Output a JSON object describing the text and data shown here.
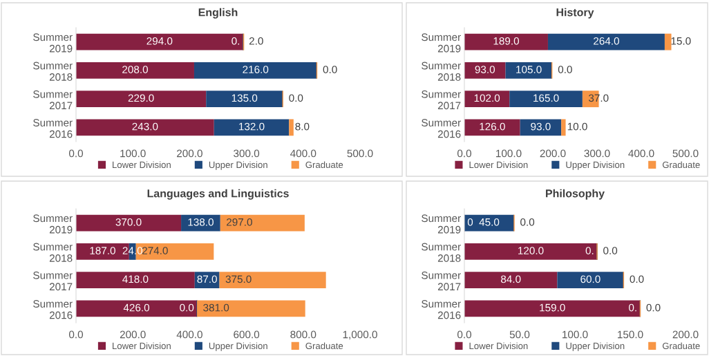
{
  "chart_data": [
    {
      "type": "bar",
      "orientation": "horizontal",
      "stacked": true,
      "title": "English",
      "categories": [
        "Summer\n2019",
        "Summer\n2018",
        "Summer\n2017",
        "Summer\n2016"
      ],
      "series": [
        {
          "name": "Lower Division",
          "color": "#862041",
          "values": [
            294,
            208,
            229,
            243
          ],
          "value_labels": [
            "294.0",
            "208.0",
            "229.0",
            "243.0"
          ]
        },
        {
          "name": "Upper Division",
          "color": "#1f497d",
          "values": [
            0,
            216,
            135,
            132
          ],
          "value_labels": [
            "0.",
            "216.0",
            "135.0",
            "132.0"
          ]
        },
        {
          "name": "Graduate",
          "color": "#f79646",
          "values": [
            2,
            0,
            0,
            8
          ],
          "value_labels": [
            "2.0",
            "0.0",
            "0.0",
            "8.0"
          ]
        }
      ],
      "xlim": [
        0,
        500
      ],
      "xticks": [
        {
          "value": 0,
          "label": "0.0"
        },
        {
          "value": 100,
          "label": "100.0"
        },
        {
          "value": 200,
          "label": "200.0"
        },
        {
          "value": 300,
          "label": "300.0"
        },
        {
          "value": 400,
          "label": "400.0"
        },
        {
          "value": 500,
          "label": "500.0"
        }
      ],
      "legend": "bottom"
    },
    {
      "type": "bar",
      "orientation": "horizontal",
      "stacked": true,
      "title": "History",
      "categories": [
        "Summer\n2019",
        "Summer\n2018",
        "Summer\n2017",
        "Summer\n2016"
      ],
      "series": [
        {
          "name": "Lower Division",
          "color": "#862041",
          "values": [
            189,
            93,
            102,
            126
          ],
          "value_labels": [
            "189.0",
            "93.0",
            "102.0",
            "126.0"
          ]
        },
        {
          "name": "Upper Division",
          "color": "#1f497d",
          "values": [
            264,
            105,
            165,
            93
          ],
          "value_labels": [
            "264.0",
            "105.0",
            "165.0",
            "93.0"
          ]
        },
        {
          "name": "Graduate",
          "color": "#f79646",
          "values": [
            15,
            0,
            37,
            10
          ],
          "value_labels": [
            "15.0",
            "0.0",
            "37.0",
            "10.0"
          ]
        }
      ],
      "xlim": [
        0,
        500
      ],
      "xticks": [
        {
          "value": 0,
          "label": "0.0"
        },
        {
          "value": 100,
          "label": "100.0"
        },
        {
          "value": 200,
          "label": "200.0"
        },
        {
          "value": 300,
          "label": "300.0"
        },
        {
          "value": 400,
          "label": "400.0"
        },
        {
          "value": 500,
          "label": "500.0"
        }
      ],
      "legend": "bottom"
    },
    {
      "type": "bar",
      "orientation": "horizontal",
      "stacked": true,
      "title": "Languages and Linguistics",
      "categories": [
        "Summer\n2019",
        "Summer\n2018",
        "Summer\n2017",
        "Summer\n2016"
      ],
      "series": [
        {
          "name": "Lower Division",
          "color": "#862041",
          "values": [
            370,
            187,
            418,
            426
          ],
          "value_labels": [
            "370.0",
            "187.0",
            "418.0",
            "426.0"
          ]
        },
        {
          "name": "Upper Division",
          "color": "#1f497d",
          "values": [
            138,
            24,
            87,
            0
          ],
          "value_labels": [
            "138.0",
            "24.0",
            "87.0",
            "0.0"
          ]
        },
        {
          "name": "Graduate",
          "color": "#f79646",
          "values": [
            297,
            274,
            375,
            381
          ],
          "value_labels": [
            "297.0",
            "274.0",
            "375.0",
            "381.0"
          ]
        }
      ],
      "xlim": [
        0,
        1000
      ],
      "xticks": [
        {
          "value": 0,
          "label": "0.0"
        },
        {
          "value": 200,
          "label": "200.0"
        },
        {
          "value": 400,
          "label": "400.0"
        },
        {
          "value": 600,
          "label": "600.0"
        },
        {
          "value": 800,
          "label": "800.0"
        },
        {
          "value": 1000,
          "label": "1,000.0"
        }
      ],
      "legend": "bottom"
    },
    {
      "type": "bar",
      "orientation": "horizontal",
      "stacked": true,
      "title": "Philosophy",
      "categories": [
        "Summer\n2019",
        "Summer\n2018",
        "Summer\n2017",
        "Summer\n2016"
      ],
      "series": [
        {
          "name": "Lower Division",
          "color": "#862041",
          "values": [
            0,
            120,
            84,
            159
          ],
          "value_labels": [
            "0",
            "120.0",
            "84.0",
            "159.0"
          ]
        },
        {
          "name": "Upper Division",
          "color": "#1f497d",
          "values": [
            45,
            0,
            60,
            0
          ],
          "value_labels": [
            "45.0",
            "0.",
            "60.0",
            "0."
          ]
        },
        {
          "name": "Graduate",
          "color": "#f79646",
          "values": [
            0,
            0,
            0,
            0
          ],
          "value_labels": [
            "0.0",
            "0.0",
            "0.0",
            "0.0"
          ]
        }
      ],
      "xlim": [
        0,
        200
      ],
      "xticks": [
        {
          "value": 0,
          "label": "0.0"
        },
        {
          "value": 50,
          "label": "50.0"
        },
        {
          "value": 100,
          "label": "100.0"
        },
        {
          "value": 150,
          "label": "150.0"
        },
        {
          "value": 200,
          "label": "200.0"
        }
      ],
      "legend": "bottom"
    }
  ]
}
